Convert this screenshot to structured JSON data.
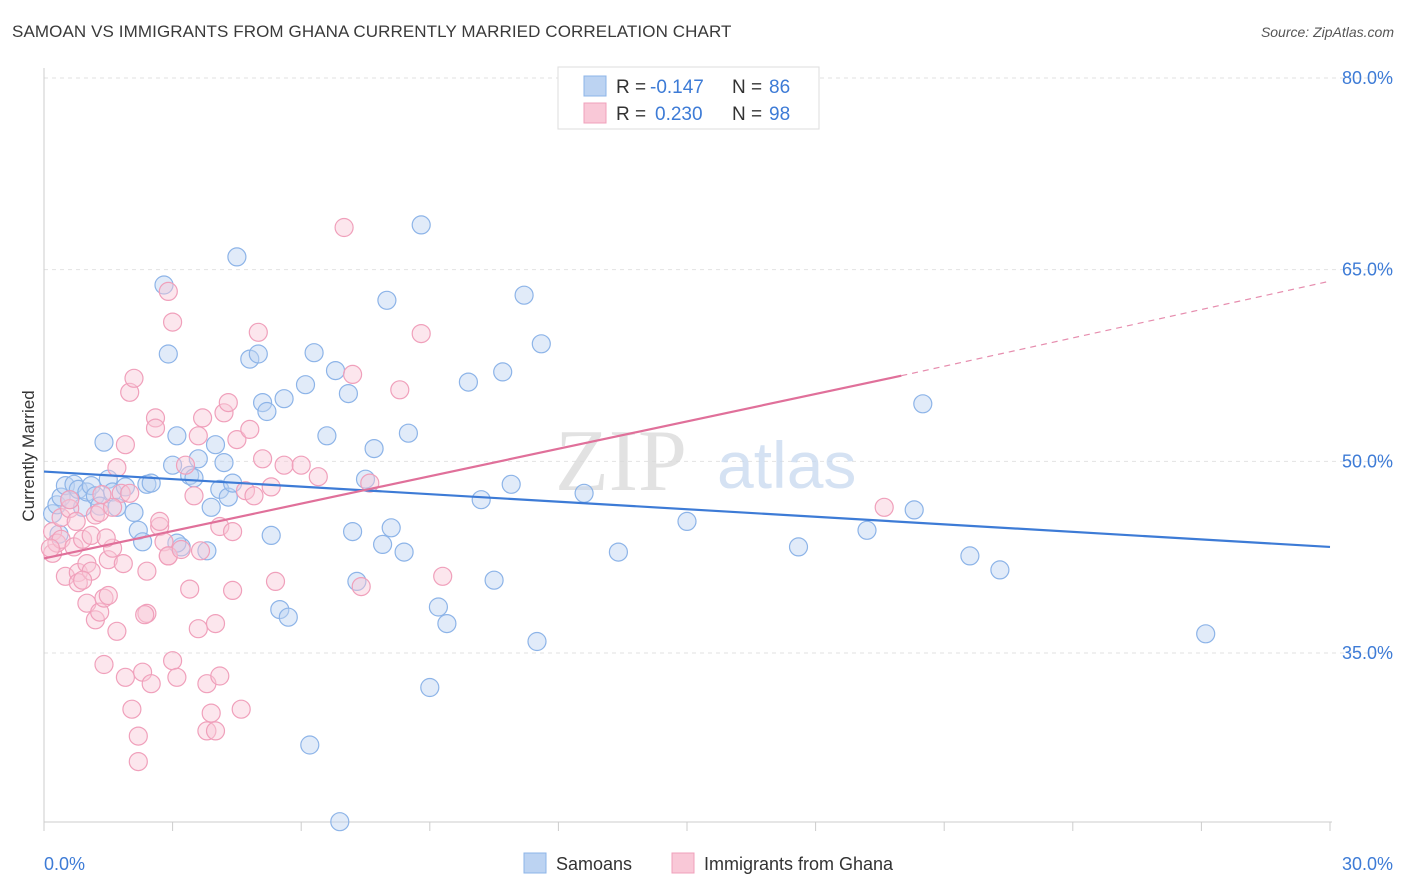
{
  "header": {
    "title": "SAMOAN VS IMMIGRANTS FROM GHANA CURRENTLY MARRIED CORRELATION CHART",
    "source": "Source: ZipAtlas.com"
  },
  "legend_top": {
    "rows": [
      {
        "r_label": "R =",
        "r_value": "-0.147",
        "n_label": "N =",
        "n_value": "86",
        "color": "#8db4e8",
        "fill": "#bcd3f2"
      },
      {
        "r_label": "R =",
        "r_value": "0.230",
        "n_label": "N =",
        "n_value": "98",
        "color": "#f0a0bb",
        "fill": "#f9c8d7"
      }
    ]
  },
  "legend_bottom": {
    "items": [
      {
        "label": "Samoans",
        "color": "#8db4e8",
        "fill": "#bcd3f2"
      },
      {
        "label": "Immigrants from Ghana",
        "color": "#f0a0bb",
        "fill": "#f9c8d7"
      }
    ]
  },
  "watermark": {
    "part1": "ZIP",
    "part2": "atlas"
  },
  "chart_data": {
    "type": "scatter",
    "title": "SAMOAN VS IMMIGRANTS FROM GHANA CURRENTLY MARRIED CORRELATION CHART",
    "xlabel": "",
    "ylabel": "Currently Married",
    "xlim": [
      0,
      30
    ],
    "ylim": [
      20,
      82
    ],
    "x_ticks": [
      "0.0%",
      "30.0%"
    ],
    "y_ticks": [
      {
        "value": 35,
        "label": "35.0%"
      },
      {
        "value": 50,
        "label": "50.0%"
      },
      {
        "value": 65,
        "label": "65.0%"
      },
      {
        "value": 80,
        "label": "80.0%"
      }
    ],
    "grid": true,
    "legend": "top-center",
    "series": [
      {
        "name": "Samoans",
        "color": "#3d7bd6",
        "marker_edge": "#8db4e8",
        "marker_fill": "#bcd3f2",
        "trend": {
          "x": [
            0,
            30
          ],
          "y": [
            49.2,
            43.3
          ]
        },
        "points": [
          [
            0.2,
            45.9
          ],
          [
            0.3,
            46.6
          ],
          [
            0.4,
            47.2
          ],
          [
            0.5,
            48.1
          ],
          [
            0.6,
            47.0
          ],
          [
            0.7,
            48.2
          ],
          [
            0.8,
            47.8
          ],
          [
            0.9,
            46.4
          ],
          [
            1.0,
            47.6
          ],
          [
            1.1,
            48.1
          ],
          [
            1.2,
            47.3
          ],
          [
            1.3,
            46.5
          ],
          [
            1.4,
            51.5
          ],
          [
            1.5,
            48.6
          ],
          [
            1.6,
            47.6
          ],
          [
            1.7,
            46.4
          ],
          [
            2.1,
            46.0
          ],
          [
            2.2,
            44.6
          ],
          [
            2.3,
            43.7
          ],
          [
            2.4,
            48.2
          ],
          [
            2.5,
            48.3
          ],
          [
            2.8,
            63.8
          ],
          [
            2.9,
            58.4
          ],
          [
            3.0,
            49.7
          ],
          [
            3.1,
            52.0
          ],
          [
            3.2,
            43.3
          ],
          [
            3.4,
            48.9
          ],
          [
            3.5,
            48.7
          ],
          [
            3.6,
            50.2
          ],
          [
            3.8,
            43.0
          ],
          [
            3.9,
            46.4
          ],
          [
            4.0,
            51.3
          ],
          [
            4.1,
            47.8
          ],
          [
            4.2,
            49.9
          ],
          [
            4.3,
            47.2
          ],
          [
            4.4,
            48.3
          ],
          [
            4.5,
            66.0
          ],
          [
            4.8,
            58.0
          ],
          [
            5.0,
            58.4
          ],
          [
            5.1,
            54.6
          ],
          [
            5.2,
            53.9
          ],
          [
            5.3,
            44.2
          ],
          [
            5.5,
            38.4
          ],
          [
            5.7,
            37.8
          ],
          [
            6.1,
            56.0
          ],
          [
            6.2,
            27.8
          ],
          [
            6.3,
            58.5
          ],
          [
            6.6,
            52.0
          ],
          [
            6.8,
            57.1
          ],
          [
            6.9,
            21.8
          ],
          [
            7.1,
            55.3
          ],
          [
            7.2,
            44.5
          ],
          [
            7.3,
            40.6
          ],
          [
            7.7,
            51.0
          ],
          [
            7.9,
            43.5
          ],
          [
            8.0,
            62.6
          ],
          [
            8.1,
            44.8
          ],
          [
            8.4,
            42.9
          ],
          [
            8.5,
            52.2
          ],
          [
            8.8,
            68.5
          ],
          [
            9.0,
            32.3
          ],
          [
            9.2,
            38.6
          ],
          [
            9.4,
            37.3
          ],
          [
            9.9,
            56.2
          ],
          [
            10.2,
            47.0
          ],
          [
            10.5,
            40.7
          ],
          [
            10.7,
            57.0
          ],
          [
            10.9,
            48.2
          ],
          [
            11.2,
            63.0
          ],
          [
            11.5,
            35.9
          ],
          [
            11.6,
            59.2
          ],
          [
            12.6,
            47.5
          ],
          [
            13.4,
            42.9
          ],
          [
            15.0,
            45.3
          ],
          [
            17.6,
            43.3
          ],
          [
            19.2,
            44.6
          ],
          [
            20.3,
            46.2
          ],
          [
            20.5,
            54.5
          ],
          [
            21.6,
            42.6
          ],
          [
            22.3,
            41.5
          ],
          [
            27.1,
            36.5
          ],
          [
            3.1,
            43.6
          ],
          [
            1.9,
            48.0
          ],
          [
            0.35,
            44.3
          ],
          [
            5.6,
            54.9
          ],
          [
            7.5,
            48.6
          ]
        ]
      },
      {
        "name": "Immigrants from Ghana",
        "color": "#e0709a",
        "marker_edge": "#f0a0bb",
        "marker_fill": "#f9c8d7",
        "trend": {
          "x": [
            0,
            20
          ],
          "y": [
            42.4,
            56.7
          ]
        },
        "trend_dashed": {
          "x": [
            20,
            30
          ],
          "y": [
            56.7,
            64.1
          ]
        },
        "points": [
          [
            0.2,
            42.8
          ],
          [
            0.2,
            44.5
          ],
          [
            0.3,
            43.6
          ],
          [
            0.4,
            43.9
          ],
          [
            0.4,
            45.6
          ],
          [
            0.5,
            41.0
          ],
          [
            0.6,
            46.3
          ],
          [
            0.7,
            43.3
          ],
          [
            0.8,
            41.3
          ],
          [
            0.8,
            40.5
          ],
          [
            0.9,
            43.9
          ],
          [
            1.0,
            38.9
          ],
          [
            1.0,
            42.0
          ],
          [
            1.1,
            41.4
          ],
          [
            1.2,
            45.8
          ],
          [
            1.2,
            37.6
          ],
          [
            1.3,
            38.2
          ],
          [
            1.3,
            46.0
          ],
          [
            1.4,
            39.3
          ],
          [
            1.4,
            34.1
          ],
          [
            1.5,
            39.5
          ],
          [
            1.5,
            42.3
          ],
          [
            1.6,
            43.2
          ],
          [
            1.7,
            36.7
          ],
          [
            1.7,
            49.5
          ],
          [
            1.8,
            47.5
          ],
          [
            1.9,
            51.3
          ],
          [
            1.9,
            33.1
          ],
          [
            2.0,
            55.4
          ],
          [
            2.0,
            47.5
          ],
          [
            2.1,
            56.5
          ],
          [
            2.2,
            28.5
          ],
          [
            2.2,
            26.5
          ],
          [
            2.3,
            33.5
          ],
          [
            2.4,
            41.4
          ],
          [
            2.4,
            38.1
          ],
          [
            2.5,
            32.6
          ],
          [
            2.6,
            53.4
          ],
          [
            2.6,
            52.6
          ],
          [
            2.7,
            44.9
          ],
          [
            2.8,
            43.7
          ],
          [
            2.9,
            42.6
          ],
          [
            2.9,
            42.6
          ],
          [
            2.9,
            63.3
          ],
          [
            3.0,
            34.4
          ],
          [
            3.0,
            60.9
          ],
          [
            3.1,
            33.1
          ],
          [
            3.2,
            43.1
          ],
          [
            3.4,
            40.0
          ],
          [
            3.5,
            47.3
          ],
          [
            3.6,
            52.0
          ],
          [
            3.6,
            36.9
          ],
          [
            3.7,
            53.4
          ],
          [
            3.8,
            32.6
          ],
          [
            3.8,
            28.9
          ],
          [
            3.9,
            30.3
          ],
          [
            4.0,
            37.3
          ],
          [
            4.0,
            28.9
          ],
          [
            4.1,
            44.9
          ],
          [
            4.2,
            53.8
          ],
          [
            4.3,
            54.6
          ],
          [
            4.4,
            44.5
          ],
          [
            4.5,
            51.7
          ],
          [
            4.6,
            30.6
          ],
          [
            4.7,
            47.7
          ],
          [
            4.8,
            52.5
          ],
          [
            4.9,
            47.3
          ],
          [
            5.0,
            60.1
          ],
          [
            5.1,
            50.2
          ],
          [
            5.3,
            48.0
          ],
          [
            5.4,
            40.6
          ],
          [
            5.6,
            49.7
          ],
          [
            6.0,
            49.7
          ],
          [
            6.4,
            48.8
          ],
          [
            7.0,
            68.3
          ],
          [
            7.2,
            56.8
          ],
          [
            7.4,
            40.2
          ],
          [
            7.6,
            48.3
          ],
          [
            8.3,
            55.6
          ],
          [
            8.8,
            60.0
          ],
          [
            9.3,
            41.0
          ],
          [
            0.6,
            47.0
          ],
          [
            1.1,
            44.2
          ],
          [
            0.9,
            40.7
          ],
          [
            1.6,
            46.4
          ],
          [
            2.7,
            45.3
          ],
          [
            3.3,
            49.7
          ],
          [
            0.15,
            43.2
          ],
          [
            1.35,
            47.4
          ],
          [
            4.4,
            39.9
          ],
          [
            2.35,
            38.0
          ],
          [
            1.85,
            42.0
          ],
          [
            3.65,
            43.0
          ],
          [
            2.05,
            30.6
          ],
          [
            1.45,
            44.0
          ],
          [
            0.75,
            45.3
          ],
          [
            19.6,
            46.4
          ],
          [
            4.1,
            33.2
          ]
        ]
      }
    ]
  }
}
